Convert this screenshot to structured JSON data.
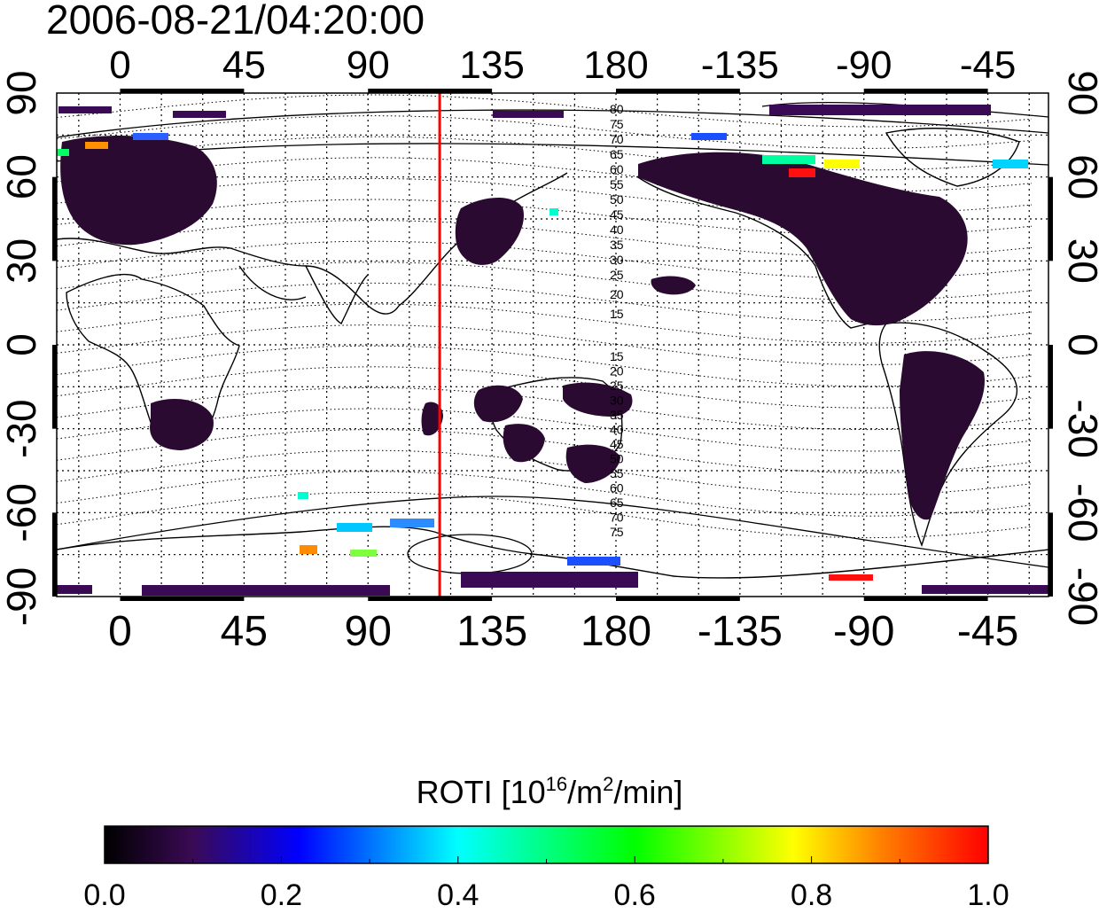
{
  "timestamp": "2006-08-21/04:20:00",
  "map": {
    "longitude_ticks_top": [
      "0",
      "45",
      "90",
      "135",
      "180",
      "-135",
      "-90",
      "-45"
    ],
    "longitude_ticks_bottom": [
      "0",
      "45",
      "90",
      "135",
      "180",
      "-135",
      "-90",
      "-45"
    ],
    "latitude_ticks_left": [
      "90",
      "60",
      "30",
      "0",
      "-30",
      "-60",
      "-90"
    ],
    "latitude_ticks_right": [
      "90",
      "60",
      "30",
      "0",
      "-30",
      "-60",
      "-90"
    ],
    "grid": "dotted 15-degree graticule",
    "marker_line_longitude": 116,
    "marker_line_color": "#ff0000",
    "magnetic_contour_labels_north": [
      "80",
      "75",
      "70",
      "65",
      "60",
      "55",
      "50",
      "45",
      "40",
      "35",
      "30",
      "25",
      "20",
      "15"
    ],
    "magnetic_contour_labels_south": [
      "15",
      "20",
      "25",
      "30",
      "35",
      "40",
      "45",
      "50",
      "55",
      "60",
      "65",
      "70",
      "75"
    ]
  },
  "colorbar": {
    "label_prefix": "ROTI  [10",
    "label_sup1": "16",
    "label_mid": "/m",
    "label_sup2": "2",
    "label_suffix": "/min]",
    "ticks": [
      "0.0",
      "0.2",
      "0.4",
      "0.6",
      "0.8",
      "1.0"
    ],
    "range": [
      0.0,
      1.0
    ],
    "colors": [
      "#000000",
      "#3a0a55",
      "#0000ff",
      "#00ffff",
      "#00ff00",
      "#ffff00",
      "#ff7f00",
      "#ff0000"
    ]
  }
}
